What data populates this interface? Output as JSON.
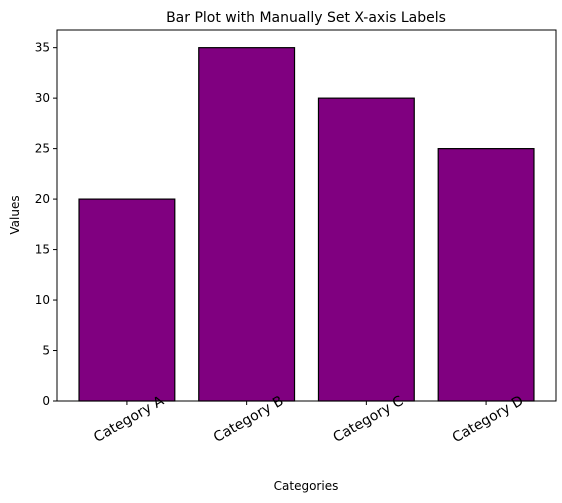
{
  "chart_data": {
    "type": "bar",
    "title": "Bar Plot with Manually Set X-axis Labels",
    "x_label": "Categories",
    "y_label": "Values",
    "categories": [
      "Category A",
      "Category B",
      "Category C",
      "Category D"
    ],
    "values": [
      20,
      35,
      30,
      25
    ],
    "color": "#800080",
    "edgecolor": "#000000",
    "ylim": [
      0,
      36.75
    ],
    "yticks": [
      0,
      5,
      10,
      15,
      20,
      25,
      30,
      35
    ],
    "grid": false
  }
}
